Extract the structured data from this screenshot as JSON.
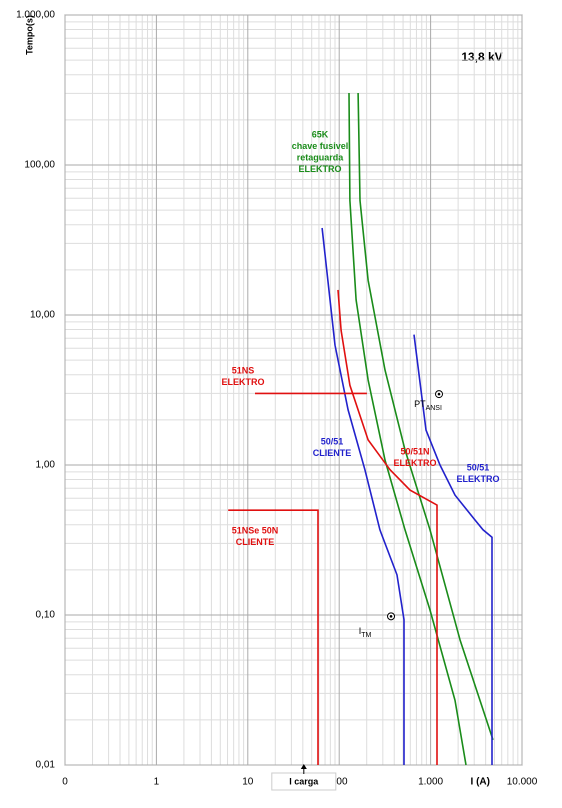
{
  "chart_data": {
    "type": "line",
    "title": "13,8 kV",
    "ylabel": "Tempo(s)",
    "xlabel": "I (A)",
    "xlog": true,
    "ylog": true,
    "grid": true,
    "xlim": [
      0.1,
      10000
    ],
    "ylim": [
      0.01,
      1000
    ],
    "xticks": [
      {
        "value": 0.1,
        "label": "0"
      },
      1,
      10,
      100,
      {
        "value": 1000,
        "label": "1.000"
      },
      {
        "value": 10000,
        "label": "10.000"
      }
    ],
    "yticks": [
      {
        "value": 0.01,
        "label": "0,01"
      },
      {
        "value": 0.1,
        "label": "0,10"
      },
      {
        "value": 1,
        "label": "1,00"
      },
      {
        "value": 10,
        "label": "10,00"
      },
      {
        "value": 100,
        "label": "100,00"
      },
      {
        "value": 1000,
        "label": "1.000,00"
      }
    ],
    "series": [
      {
        "name": [
          "65K",
          "chave fusivel",
          "retaguarda",
          "ELEKTRO"
        ],
        "color": "#1a8c1a",
        "x": [
          128,
          131,
          153,
          207,
          317,
          525,
          985,
          1850,
          2440
        ],
        "values": [
          302,
          58,
          12.6,
          3.69,
          1.08,
          0.37,
          0.108,
          0.027,
          0.01
        ]
      },
      {
        "color": "#1a8c1a",
        "x": [
          161,
          169,
          207,
          317,
          525,
          985,
          2100,
          4820
        ],
        "values": [
          302,
          58,
          17.1,
          4.3,
          1.26,
          0.37,
          0.068,
          0.0147
        ]
      },
      {
        "name": [
          "50/51",
          "CLIENTE"
        ],
        "color": "#2222cc",
        "x": [
          65,
          90,
          125,
          191,
          279,
          429,
          512,
          512
        ],
        "values": [
          38,
          6.3,
          2.33,
          0.93,
          0.37,
          0.185,
          0.093,
          0.01
        ]
      },
      {
        "name": [
          "50/51",
          "ELEKTRO"
        ],
        "color": "#2222cc",
        "x": [
          658,
          891,
          1267,
          1850,
          3060,
          3740,
          4700,
          4700
        ],
        "values": [
          7.4,
          1.71,
          1.0,
          0.63,
          0.43,
          0.37,
          0.33,
          0.01
        ]
      },
      {
        "name": [
          "50/51N",
          "ELEKTRO"
        ],
        "color": "#e01010",
        "x": [
          97,
          105,
          131,
          207,
          360,
          595,
          1175,
          1175
        ],
        "values": [
          14.7,
          7.9,
          3.4,
          1.47,
          0.93,
          0.68,
          0.54,
          0.01
        ]
      },
      {
        "name": [
          "51NS",
          "ELEKTRO"
        ],
        "color": "#e01010",
        "x": [
          12,
          201
        ],
        "values": [
          3.0,
          3.0
        ]
      },
      {
        "name": [
          "51NSe 50N",
          "CLIENTE"
        ],
        "color": "#e01010",
        "x": [
          6.1,
          58.6,
          58.6
        ],
        "values": [
          0.5,
          0.5,
          0.01
        ]
      }
    ],
    "points": [
      {
        "label": "PT",
        "sub": "ANSI",
        "x": 1236,
        "y": 2.97
      },
      {
        "label": "I",
        "sub": "TM",
        "x": 369,
        "y": 0.098
      }
    ],
    "marker": {
      "label": "I carga",
      "x": 41
    }
  }
}
